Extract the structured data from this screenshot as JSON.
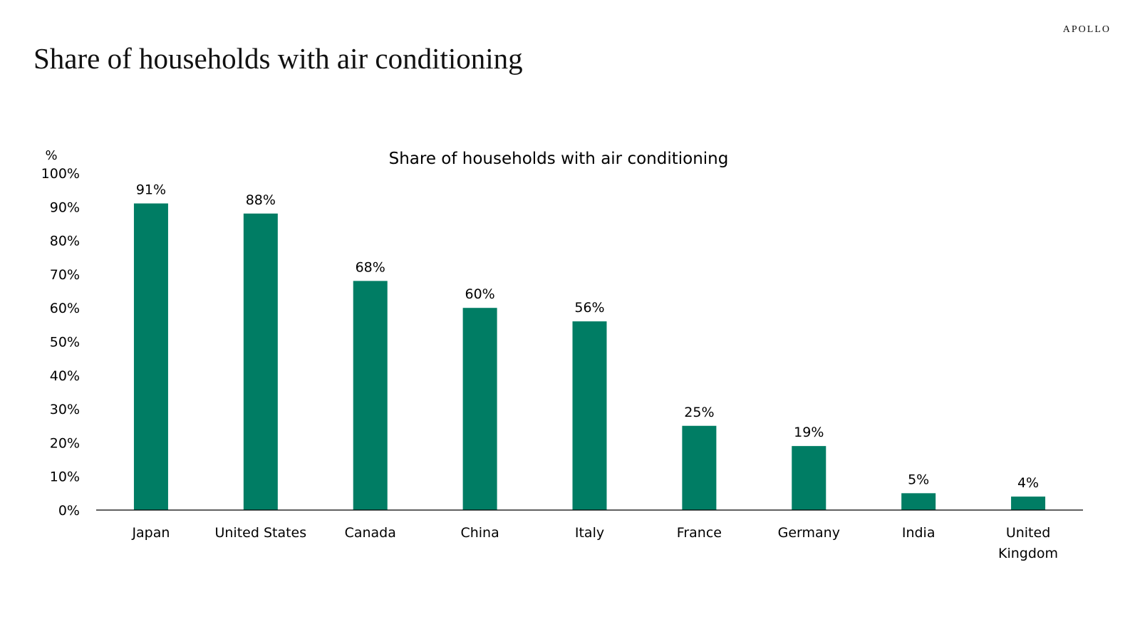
{
  "header": {
    "brand": "APOLLO",
    "title": "Share of households with air conditioning"
  },
  "colors": {
    "bar": "#007D64",
    "axis": "#000000"
  },
  "chart_data": {
    "type": "bar",
    "title": "Share of households with air conditioning",
    "ylabel": "%",
    "xlabel": "",
    "categories": [
      "Japan",
      "United States",
      "Canada",
      "China",
      "Italy",
      "France",
      "Germany",
      "India",
      "United Kingdom"
    ],
    "values": [
      91,
      88,
      68,
      60,
      56,
      25,
      19,
      5,
      4
    ],
    "data_labels": [
      "91%",
      "88%",
      "68%",
      "60%",
      "56%",
      "25%",
      "19%",
      "5%",
      "4%"
    ],
    "ylim": [
      0,
      100
    ],
    "yticks": [
      0,
      10,
      20,
      30,
      40,
      50,
      60,
      70,
      80,
      90,
      100
    ],
    "ytick_labels": [
      "0%",
      "10%",
      "20%",
      "30%",
      "40%",
      "50%",
      "60%",
      "70%",
      "80%",
      "90%",
      "100%"
    ],
    "grid": false,
    "legend": "none"
  }
}
